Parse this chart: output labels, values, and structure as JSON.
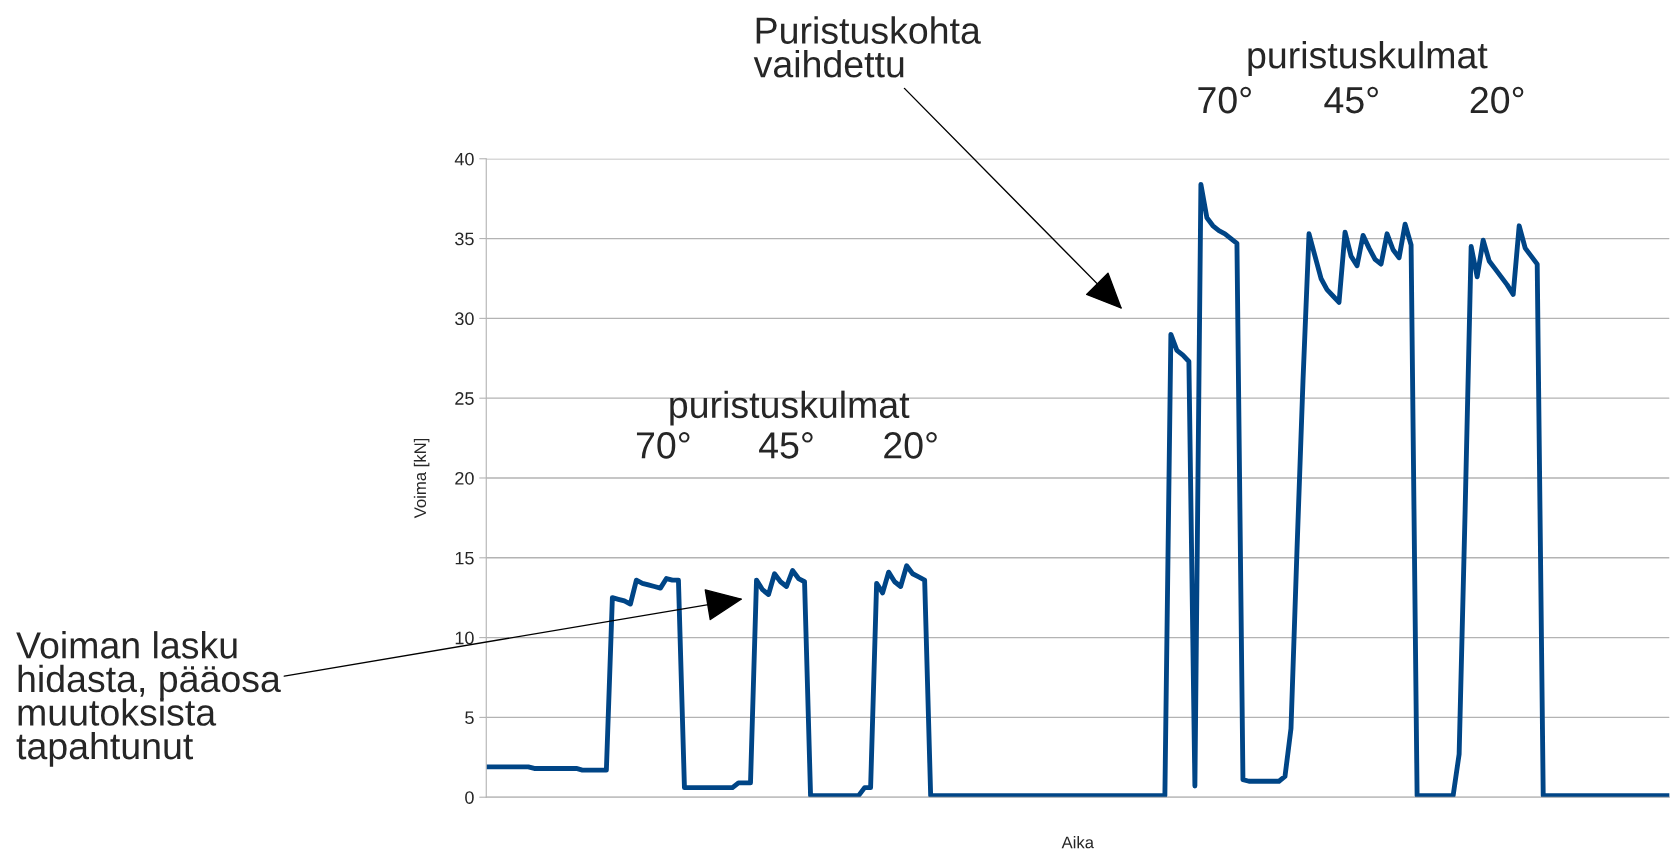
{
  "chart_data": {
    "type": "line",
    "xlabel": "Aika",
    "ylabel": "Voima [kN]",
    "categories": [
      null,
      null,
      null,
      null,
      null,
      null,
      null,
      null,
      null,
      null,
      null,
      null,
      null,
      null,
      null,
      null,
      null,
      null,
      null,
      null,
      null,
      null,
      null,
      null,
      null,
      null,
      null,
      null,
      null,
      null,
      null,
      null,
      null,
      null,
      null,
      null,
      null,
      null,
      null,
      null,
      null,
      null,
      null,
      null,
      null,
      null,
      null,
      null,
      null,
      null,
      null,
      null,
      null,
      null,
      null,
      null,
      null,
      null,
      null,
      null,
      null,
      null,
      null,
      null,
      null,
      null,
      null,
      null,
      null,
      null,
      null,
      null,
      null,
      null,
      null,
      null,
      null,
      null,
      null,
      null,
      null,
      null,
      null,
      null,
      null,
      null,
      null,
      null,
      null,
      null,
      null,
      null,
      null,
      null,
      null,
      null,
      null,
      null,
      null,
      null,
      null,
      null,
      null,
      null,
      null,
      null,
      null,
      null,
      null,
      null,
      null,
      null,
      null,
      null,
      null,
      null,
      null,
      null,
      null,
      null,
      null,
      null,
      null,
      null,
      null,
      null,
      null,
      null,
      null,
      null,
      null,
      null,
      null,
      null,
      null,
      null,
      null,
      null,
      null,
      null,
      null,
      null,
      null,
      null,
      null,
      null,
      null,
      null,
      null,
      null,
      null,
      null,
      null,
      null,
      null,
      null,
      null,
      null,
      null,
      null,
      null,
      null,
      null,
      null,
      null,
      null,
      null,
      null,
      null,
      null,
      null,
      null,
      null,
      null,
      null,
      null,
      null,
      null,
      null,
      null,
      null,
      null,
      null,
      null,
      null,
      null,
      null,
      null,
      null,
      null,
      null,
      null,
      null,
      null,
      null,
      null,
      null,
      null
    ],
    "ylim": [
      0,
      40
    ],
    "yticks": [
      0,
      5,
      10,
      15,
      20,
      25,
      30,
      35,
      40
    ],
    "grid": "y",
    "tick_labels": "y",
    "legend": false,
    "marker": "none",
    "line_style": "solid",
    "series": [
      {
        "color": "#004586",
        "values": [
          1.9,
          1.9,
          1.9,
          1.9,
          1.9,
          1.9,
          1.9,
          1.9,
          1.8,
          1.8,
          1.8,
          1.8,
          1.8,
          1.8,
          1.8,
          1.8,
          1.7,
          1.7,
          1.7,
          1.7,
          1.7,
          12.5,
          12.4,
          12.3,
          12.1,
          13.6,
          13.4,
          13.3,
          13.2,
          13.1,
          13.7,
          13.6,
          13.6,
          0.6,
          0.6,
          0.6,
          0.6,
          0.6,
          0.6,
          0.6,
          0.6,
          0.6,
          0.9,
          0.9,
          0.9,
          13.6,
          13.0,
          12.7,
          14.0,
          13.5,
          13.2,
          14.2,
          13.7,
          13.5,
          0.1,
          0.1,
          0.1,
          0.1,
          0.1,
          0.1,
          0.1,
          0.1,
          0.1,
          0.6,
          0.6,
          13.4,
          12.8,
          14.1,
          13.5,
          13.2,
          14.5,
          14.0,
          13.8,
          13.6,
          0.1,
          0.1,
          0.1,
          0.1,
          0.1,
          0.1,
          0.1,
          0.1,
          0.1,
          0.1,
          0.1,
          0.1,
          0.1,
          0.1,
          0.1,
          0.1,
          0.1,
          0.1,
          0.1,
          0.1,
          0.1,
          0.1,
          0.1,
          0.1,
          0.1,
          0.1,
          0.1,
          0.1,
          0.1,
          0.1,
          0.1,
          0.1,
          0.1,
          0.1,
          0.1,
          0.1,
          0.1,
          0.1,
          0.1,
          0.1,
          29.0,
          28.0,
          27.7,
          27.3,
          0.7,
          38.4,
          36.3,
          35.8,
          35.5,
          35.3,
          35.0,
          34.7,
          1.1,
          1.0,
          1.0,
          1.0,
          1.0,
          1.0,
          1.0,
          1.3,
          4.3,
          15.5,
          26.1,
          35.3,
          33.9,
          32.5,
          31.8,
          31.4,
          31.0,
          35.4,
          33.9,
          33.3,
          35.2,
          34.4,
          33.7,
          33.4,
          35.3,
          34.3,
          33.8,
          35.9,
          34.6,
          0.1,
          0.1,
          0.1,
          0.1,
          0.1,
          0.1,
          0.1,
          2.7,
          18.0,
          34.5,
          32.6,
          34.9,
          33.6,
          33.1,
          32.6,
          32.1,
          31.5,
          35.8,
          34.4,
          33.9,
          33.4,
          0.1,
          0.1,
          0.1,
          0.1,
          0.1,
          0.1,
          0.1,
          0.1,
          0.1,
          0.1,
          0.1,
          0.1,
          0.1,
          0.1,
          0.1,
          0.1,
          0.1,
          0.1,
          0.1,
          0.1,
          0.1,
          0.1
        ]
      }
    ],
    "annotations": [
      "Voiman lasku\nhidasta, pääosa\nmuutoksista\ntapahtunut",
      "Puristuskohta\nvaihdettu",
      "puristuskulmat",
      "70°",
      "45°",
      "20°",
      "puristuskulmat",
      "70°",
      "45°",
      "20°"
    ]
  }
}
